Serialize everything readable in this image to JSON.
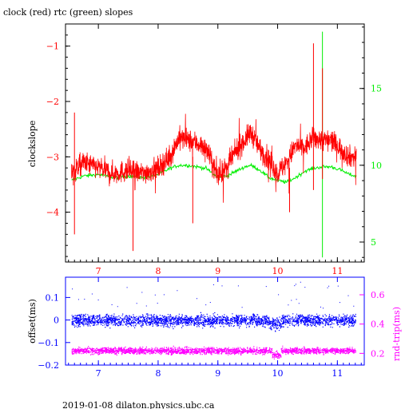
{
  "title": "clock (red) rtc (green) slopes",
  "footer": "2019-01-08  dilaton.physics.ubc.ca",
  "colors": {
    "clock": "#ff0000",
    "rtc": "#00ee00",
    "offset": "#0000ff",
    "rndtrip": "#ff00ff",
    "frame": "#000000"
  },
  "chart_data": [
    {
      "type": "line",
      "title": "clock (red) rtc (green) slopes",
      "xlabel": "",
      "ylabel": "clockslope",
      "y2label": "",
      "xlim": [
        6.45,
        11.45
      ],
      "ylim": [
        -4.9,
        -0.6
      ],
      "y2lim": [
        3.7,
        19.2
      ],
      "x_ticks": [
        7,
        8,
        9,
        10,
        11
      ],
      "y_ticks": [
        -4,
        -3,
        -2,
        -1
      ],
      "y2_ticks": [
        5,
        10,
        15
      ],
      "grid": false,
      "series": [
        {
          "name": "clock",
          "axis": "left",
          "x": [
            6.55,
            6.75,
            7.0,
            7.25,
            7.5,
            7.75,
            8.0,
            8.2,
            8.35,
            8.5,
            8.65,
            8.8,
            9.0,
            9.15,
            9.3,
            9.45,
            9.55,
            9.7,
            9.85,
            10.0,
            10.15,
            10.3,
            10.45,
            10.6,
            10.75,
            10.9,
            11.05,
            11.2,
            11.3
          ],
          "y": [
            -3.3,
            -3.1,
            -3.2,
            -3.3,
            -3.25,
            -3.3,
            -3.2,
            -3.0,
            -2.65,
            -2.7,
            -2.75,
            -2.85,
            -3.35,
            -3.2,
            -2.9,
            -2.7,
            -2.55,
            -2.85,
            -3.05,
            -3.3,
            -3.1,
            -2.8,
            -2.85,
            -2.65,
            -2.7,
            -2.7,
            -2.85,
            -3.0,
            -3.0
          ]
        },
        {
          "name": "rtc",
          "axis": "right",
          "x": [
            6.55,
            6.75,
            7.0,
            7.25,
            7.5,
            7.75,
            8.0,
            8.2,
            8.35,
            8.5,
            8.65,
            8.8,
            9.0,
            9.15,
            9.3,
            9.45,
            9.55,
            9.7,
            9.85,
            10.0,
            10.15,
            10.3,
            10.45,
            10.6,
            10.75,
            10.9,
            11.05,
            11.2,
            11.3
          ],
          "y": [
            9.0,
            9.3,
            9.4,
            9.2,
            9.3,
            9.2,
            9.4,
            9.8,
            10.0,
            10.0,
            9.9,
            9.8,
            9.2,
            9.3,
            9.6,
            9.9,
            10.0,
            9.7,
            9.2,
            9.0,
            8.9,
            9.2,
            9.6,
            9.8,
            9.9,
            9.9,
            9.7,
            9.4,
            9.3
          ]
        }
      ]
    },
    {
      "type": "scatter",
      "xlabel": "",
      "ylabel": "offset(ms)",
      "y2label": "rnd-trip(ms)",
      "xlim": [
        6.45,
        11.45
      ],
      "ylim": [
        -0.2,
        0.19
      ],
      "y2lim": [
        0.12,
        0.72
      ],
      "x_ticks": [
        7,
        8,
        9,
        10,
        11
      ],
      "y_ticks": [
        -0.2,
        -0.1,
        0,
        0.1
      ],
      "y2_ticks": [
        0.2,
        0.4,
        0.6
      ],
      "y_tick_labels": [
        "-0.2",
        "-0.1",
        "0",
        "0.1"
      ],
      "y2_tick_labels": [
        "0.2",
        "0.4",
        "0.6"
      ],
      "grid": false,
      "series": [
        {
          "name": "offset",
          "axis": "left",
          "x_range": [
            6.55,
            11.3
          ],
          "center": 0.0,
          "spread": 0.03
        },
        {
          "name": "rnd-trip",
          "axis": "right",
          "x_range": [
            6.55,
            11.3
          ],
          "center": 0.22,
          "spread": 0.025
        }
      ]
    }
  ]
}
